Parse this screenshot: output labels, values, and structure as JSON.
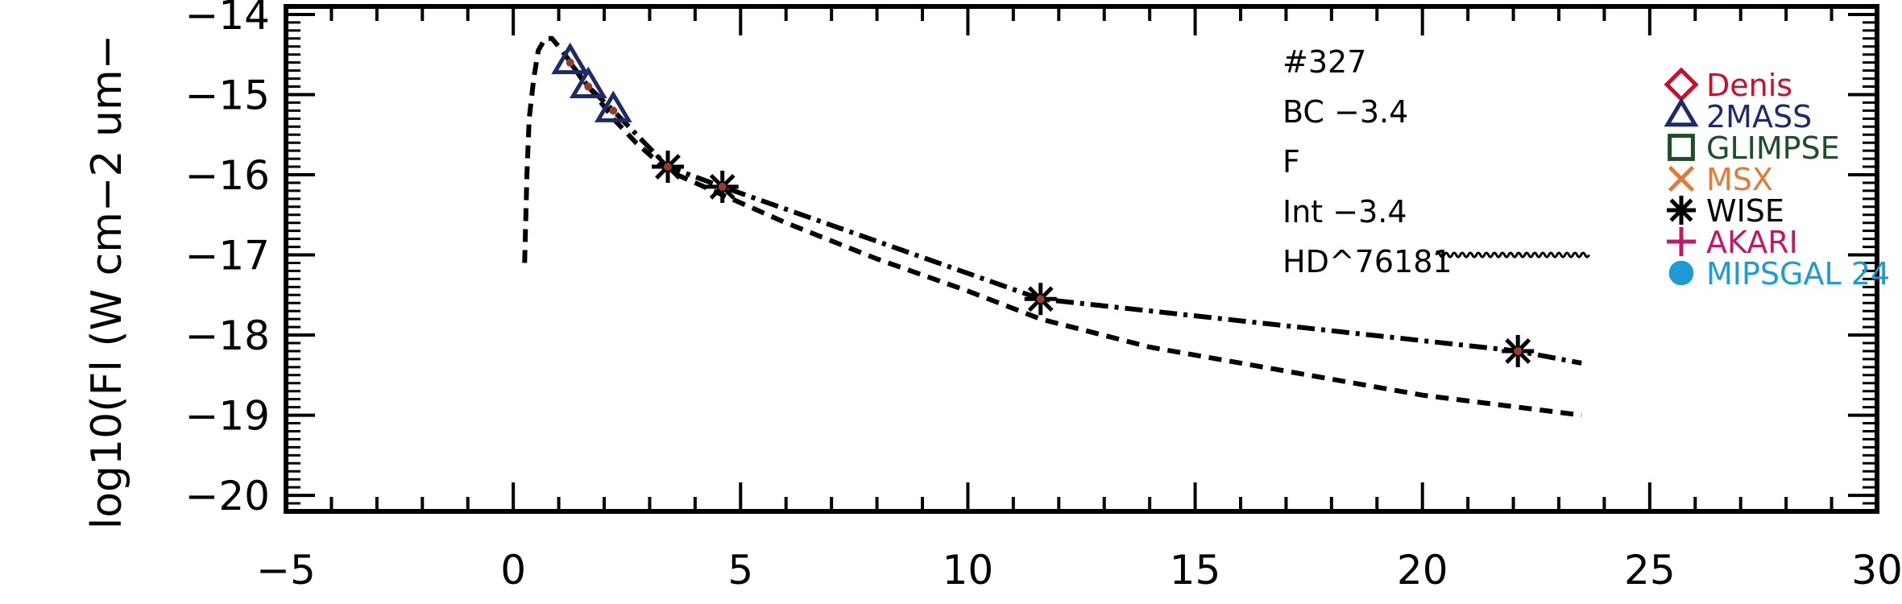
{
  "chart_data": {
    "type": "line",
    "title": "",
    "xlabel": "",
    "ylabel": "log10(Fl (W cm−2 um−",
    "xlim": [
      -5,
      30
    ],
    "ylim": [
      -20.2,
      -13.9
    ],
    "xticks": [
      -5,
      0,
      5,
      10,
      15,
      20,
      25,
      30
    ],
    "xtick_labels": [
      "−5",
      "0",
      "5",
      "10",
      "15",
      "20",
      "25",
      "30"
    ],
    "yticks": [
      -20,
      -19,
      -18,
      -17,
      -16,
      -15,
      -14
    ],
    "ytick_labels": [
      "−20",
      "−19",
      "−18",
      "−17",
      "−16",
      "−15",
      "−14"
    ],
    "annotations": [
      "#327",
      "BC  −3.4",
      "F",
      "Int  −3.4",
      "HD^76181"
    ],
    "legend": {
      "placement": "top-right",
      "entries": [
        {
          "name": "Denis",
          "marker": "diamond",
          "color": "#c8102e"
        },
        {
          "name": "2MASS",
          "marker": "triangle",
          "color": "#1f2a6b"
        },
        {
          "name": "GLIMPSE",
          "marker": "square",
          "color": "#1e4d2b"
        },
        {
          "name": "MSX",
          "marker": "x",
          "color": "#e07b39"
        },
        {
          "name": "WISE",
          "marker": "asterisk",
          "color": "#000000"
        },
        {
          "name": "AKARI",
          "marker": "plus",
          "color": "#c2186b"
        },
        {
          "name": "MIPSGAL 24",
          "marker": "circle",
          "color": "#1e9ad6"
        }
      ]
    },
    "series": [
      {
        "style": "dashed",
        "color": "#000000",
        "points": [
          [
            0.25,
            -17.1
          ],
          [
            0.3,
            -16.0
          ],
          [
            0.35,
            -15.3
          ],
          [
            0.45,
            -14.8
          ],
          [
            0.55,
            -14.45
          ],
          [
            0.7,
            -14.3
          ],
          [
            0.85,
            -14.3
          ],
          [
            1.0,
            -14.4
          ],
          [
            1.2,
            -14.55
          ],
          [
            1.5,
            -14.8
          ],
          [
            1.8,
            -15.0
          ],
          [
            2.2,
            -15.3
          ],
          [
            2.7,
            -15.6
          ],
          [
            3.4,
            -15.95
          ],
          [
            4.6,
            -16.25
          ],
          [
            6,
            -16.6
          ],
          [
            8,
            -17.05
          ],
          [
            10,
            -17.45
          ],
          [
            11.6,
            -17.8
          ],
          [
            14,
            -18.15
          ],
          [
            17,
            -18.45
          ],
          [
            20,
            -18.75
          ],
          [
            23.5,
            -19.0
          ]
        ]
      },
      {
        "style": "dash-dot",
        "color": "#000000",
        "points": [
          [
            1.25,
            -14.6
          ],
          [
            1.65,
            -14.9
          ],
          [
            2.2,
            -15.2
          ],
          [
            3.4,
            -15.9
          ],
          [
            4.6,
            -16.15
          ],
          [
            11.6,
            -17.55
          ],
          [
            22.1,
            -18.2
          ],
          [
            23.5,
            -18.35
          ]
        ]
      },
      {
        "style": "wavy",
        "color": "#000000",
        "points": [
          [
            20.3,
            -17.0
          ],
          [
            23.5,
            -17.0
          ]
        ]
      }
    ],
    "markers": [
      {
        "survey": "2MASS",
        "marker": "triangle",
        "color": "#1f2a6b",
        "points": [
          [
            1.25,
            -14.6
          ],
          [
            1.65,
            -14.9
          ],
          [
            2.2,
            -15.2
          ]
        ]
      },
      {
        "survey": "WISE",
        "marker": "asterisk",
        "color": "#000000",
        "points": [
          [
            3.4,
            -15.9
          ],
          [
            4.6,
            -16.15
          ],
          [
            11.6,
            -17.55
          ],
          [
            22.1,
            -18.2
          ]
        ]
      },
      {
        "survey": "data",
        "marker": "dot",
        "color": "#9b3a2a",
        "points": [
          [
            1.25,
            -14.6
          ],
          [
            1.65,
            -14.9
          ],
          [
            2.2,
            -15.2
          ],
          [
            3.4,
            -15.9
          ],
          [
            4.6,
            -16.15
          ],
          [
            11.6,
            -17.55
          ],
          [
            22.1,
            -18.2
          ]
        ]
      }
    ]
  }
}
